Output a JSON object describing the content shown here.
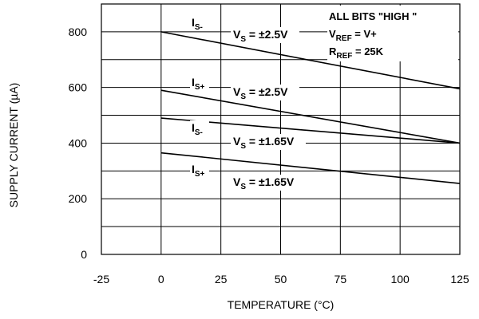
{
  "chart_data": {
    "type": "line",
    "xlabel": "TEMPERATURE (°C)",
    "ylabel": "SUPPLY CURRENT (µA)",
    "xlim": [
      -25,
      125
    ],
    "ylim": [
      0,
      900
    ],
    "x_ticks": [
      -25,
      0,
      25,
      50,
      75,
      100,
      125
    ],
    "y_ticks": [
      0,
      200,
      400,
      600,
      800
    ],
    "y_gridlines": [
      100,
      200,
      300,
      400,
      500,
      600,
      700,
      800
    ],
    "grid": true,
    "notes": {
      "line1": "ALL BITS \"HIGH \"",
      "line2_main": "V",
      "line2_sub": "REF",
      "line2_rest": " = V+",
      "line3_main": "R",
      "line3_sub": "REF",
      "line3_rest": " = 25K"
    },
    "series": [
      {
        "current": "I",
        "current_sub": "S-",
        "vs_main": "V",
        "vs_sub": "S",
        "vs_rest": " = ±2.5V",
        "x": [
          0,
          125
        ],
        "y": [
          800,
          595
        ]
      },
      {
        "current": "I",
        "current_sub": "S+",
        "vs_main": "V",
        "vs_sub": "S",
        "vs_rest": " = ±2.5V",
        "x": [
          0,
          125
        ],
        "y": [
          590,
          400
        ]
      },
      {
        "current": "I",
        "current_sub": "S-",
        "vs_main": "V",
        "vs_sub": "S",
        "vs_rest": " = ±1.65V",
        "x": [
          0,
          125
        ],
        "y": [
          490,
          400
        ]
      },
      {
        "current": "I",
        "current_sub": "S+",
        "vs_main": "V",
        "vs_sub": "S",
        "vs_rest": " = ±1.65V",
        "x": [
          0,
          125
        ],
        "y": [
          365,
          255
        ]
      }
    ]
  }
}
